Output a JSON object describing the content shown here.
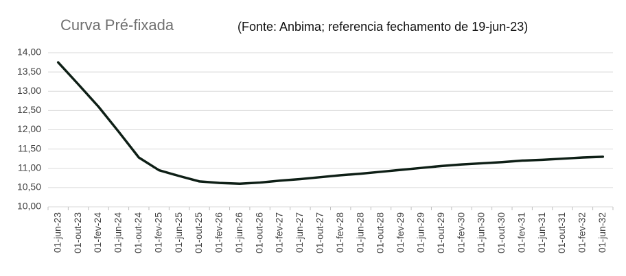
{
  "chart_data": {
    "type": "line",
    "title": "Curva Pré-fixada",
    "subtitle": "(Fonte: Anbima; referencia fechamento de 19-jun-23)",
    "categories": [
      "01-jun-23",
      "01-out-23",
      "01-fev-24",
      "01-jun-24",
      "01-out-24",
      "01-fev-25",
      "01-jun-25",
      "01-out-25",
      "01-fev-26",
      "01-jun-26",
      "01-out-26",
      "01-fev-27",
      "01-jun-27",
      "01-out-27",
      "01-fev-28",
      "01-jun-28",
      "01-out-28",
      "01-fev-29",
      "01-jun-29",
      "01-out-29",
      "01-fev-30",
      "01-jun-30",
      "01-out-30",
      "01-fev-31",
      "01-jun-31",
      "01-out-31",
      "01-fev-32",
      "01-jun-32"
    ],
    "values": [
      13.75,
      13.18,
      12.6,
      11.95,
      11.28,
      10.95,
      10.8,
      10.66,
      10.62,
      10.6,
      10.63,
      10.68,
      10.72,
      10.77,
      10.82,
      10.86,
      10.91,
      10.96,
      11.01,
      11.06,
      11.1,
      11.13,
      11.16,
      11.2,
      11.22,
      11.25,
      11.28,
      11.3
    ],
    "color": "#0e1f16",
    "ylim": [
      10,
      14
    ],
    "yticks": [
      {
        "value": 10,
        "label": "10,00"
      },
      {
        "value": 10.5,
        "label": "10,50"
      },
      {
        "value": 11,
        "label": "11,00"
      },
      {
        "value": 11.5,
        "label": "11,50"
      },
      {
        "value": 12,
        "label": "12,00"
      },
      {
        "value": 12.5,
        "label": "12,50"
      },
      {
        "value": 13,
        "label": "13,00"
      },
      {
        "value": 13.5,
        "label": "13,50"
      },
      {
        "value": 14,
        "label": "14,00"
      }
    ],
    "grid": true
  }
}
